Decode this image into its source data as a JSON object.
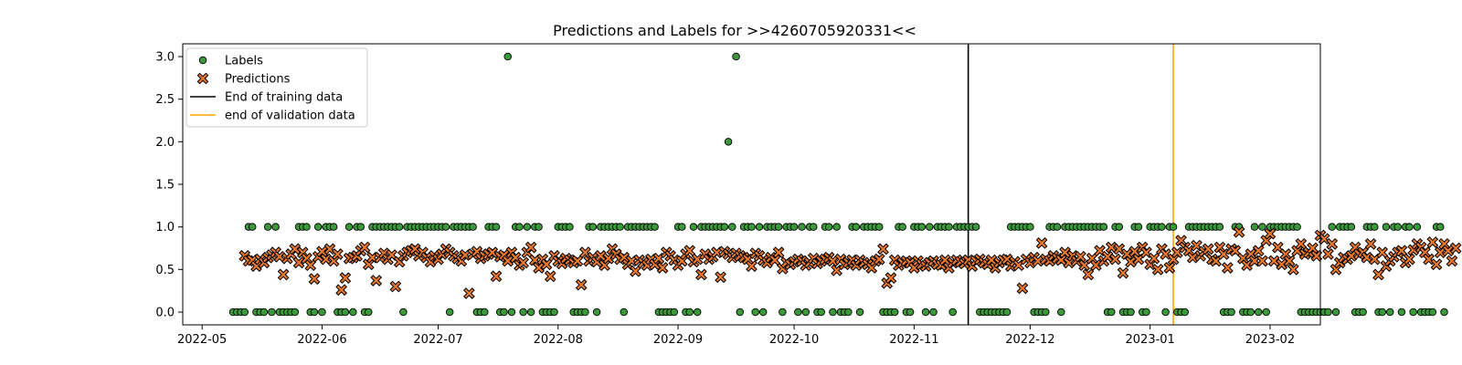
{
  "chart_data": {
    "type": "scatter",
    "title": "Predictions and Labels for >>4260705920331<<",
    "xlabel": "",
    "ylabel": "",
    "xlim": [
      "2022-04-26",
      "2023-02-14"
    ],
    "ylim": [
      -0.15,
      3.15
    ],
    "x_ticks": [
      "2022-05",
      "2022-06",
      "2022-07",
      "2022-08",
      "2022-09",
      "2022-10",
      "2022-11",
      "2022-12",
      "2023-01",
      "2023-02"
    ],
    "y_ticks": [
      "0.0",
      "0.5",
      "1.0",
      "1.5",
      "2.0",
      "2.5",
      "3.0"
    ],
    "grid": false,
    "legend_position": "top-left",
    "colors": {
      "labels": "#3a9a3a",
      "predictions": "#e8782d",
      "training_line": "#000000",
      "validation_line": "#ffa500"
    },
    "legend": [
      {
        "label": "Labels",
        "marker": "circle"
      },
      {
        "label": "Predictions",
        "marker": "x"
      },
      {
        "label": "End of training data",
        "marker": "line-black"
      },
      {
        "label": "end of validation data",
        "marker": "line-orange"
      }
    ],
    "vlines": [
      {
        "name": "End of training data",
        "x": "2022-11-15"
      },
      {
        "name": "end of validation data",
        "x": "2023-01-07"
      }
    ],
    "series": [
      {
        "name": "Labels",
        "start": "2022-05-09",
        "values": [
          0,
          0,
          0,
          0,
          1,
          1,
          0,
          0,
          0,
          1,
          0,
          1,
          0,
          0,
          0,
          0,
          0,
          1,
          1,
          1,
          0,
          0,
          1,
          0,
          1,
          1,
          1,
          0,
          0,
          0,
          1,
          0,
          1,
          1,
          0,
          0,
          1,
          1,
          1,
          1,
          1,
          1,
          1,
          1,
          0,
          1,
          1,
          1,
          1,
          1,
          1,
          1,
          1,
          1,
          1,
          1,
          0,
          1,
          1,
          1,
          1,
          1,
          1,
          0,
          0,
          0,
          1,
          1,
          1,
          0,
          0,
          3,
          0,
          1,
          1,
          0,
          1,
          0,
          1,
          1,
          0,
          0,
          0,
          0,
          1,
          1,
          1,
          1,
          0,
          0,
          0,
          0,
          1,
          1,
          0,
          1,
          1,
          1,
          1,
          1,
          1,
          0,
          1,
          1,
          1,
          1,
          1,
          1,
          1,
          1,
          0,
          0,
          0,
          0,
          0,
          1,
          1,
          0,
          0,
          1,
          0,
          1,
          1,
          1,
          1,
          1,
          1,
          1,
          2,
          1,
          3,
          0,
          1,
          1,
          1,
          0,
          1,
          0,
          1,
          1,
          1,
          1,
          0,
          1,
          1,
          1,
          0,
          1,
          0,
          1,
          1,
          0,
          0,
          1,
          1,
          0,
          1,
          0,
          0,
          0,
          1,
          1,
          0,
          1,
          1,
          1,
          1,
          1,
          0,
          0,
          0,
          0,
          1,
          1,
          0,
          0,
          1,
          1,
          1,
          0,
          1,
          0,
          1,
          1,
          1,
          1,
          0,
          1,
          1,
          1,
          1,
          1,
          1,
          0,
          0,
          0,
          0,
          0,
          0,
          0,
          0,
          1,
          1,
          1,
          1,
          1,
          1,
          0,
          0,
          0,
          0,
          1,
          1,
          1,
          0,
          1,
          1,
          1,
          1,
          1,
          1,
          1,
          1,
          1,
          1,
          1,
          0,
          0,
          1,
          1,
          0,
          0,
          0,
          1,
          1,
          0,
          0,
          1,
          1,
          1,
          1,
          0,
          1,
          1,
          0,
          0,
          0,
          1,
          1,
          1,
          1,
          1,
          1,
          1,
          1,
          1,
          0,
          0,
          0,
          1,
          1,
          0,
          0,
          0,
          1,
          0,
          1,
          0,
          1,
          1,
          1,
          1,
          1,
          1,
          1,
          1,
          0,
          0,
          0,
          0,
          0,
          0,
          0,
          0,
          1,
          0,
          1,
          1,
          1,
          1,
          0,
          0,
          0,
          1,
          1,
          1,
          0,
          0,
          1,
          0,
          1,
          1,
          0,
          1,
          1,
          0,
          1,
          0,
          0,
          0,
          0,
          1,
          1,
          0
        ]
      },
      {
        "name": "Predictions",
        "start": "2022-05-12",
        "values": [
          0.66,
          0.6,
          0.61,
          0.54,
          0.62,
          0.58,
          0.64,
          0.67,
          0.7,
          0.65,
          0.44,
          0.63,
          0.68,
          0.74,
          0.58,
          0.7,
          0.63,
          0.55,
          0.39,
          0.65,
          0.71,
          0.62,
          0.74,
          0.6,
          0.68,
          0.26,
          0.4,
          0.63,
          0.64,
          0.66,
          0.72,
          0.76,
          0.56,
          0.64,
          0.37,
          0.64,
          0.69,
          0.62,
          0.67,
          0.3,
          0.59,
          0.66,
          0.7,
          0.72,
          0.74,
          0.66,
          0.7,
          0.64,
          0.59,
          0.66,
          0.62,
          0.68,
          0.74,
          0.7,
          0.66,
          0.63,
          0.6,
          0.67,
          0.22,
          0.68,
          0.71,
          0.63,
          0.66,
          0.68,
          0.7,
          0.42,
          0.65,
          0.67,
          0.6,
          0.7,
          0.64,
          0.55,
          0.58,
          0.7,
          0.76,
          0.61,
          0.52,
          0.62,
          0.56,
          0.42,
          0.66,
          0.6,
          0.57,
          0.63,
          0.61,
          0.58,
          0.6,
          0.32,
          0.7,
          0.6,
          0.64,
          0.59,
          0.66,
          0.55,
          0.63,
          0.74,
          0.68,
          0.62,
          0.64,
          0.56,
          0.6,
          0.48,
          0.61,
          0.58,
          0.55,
          0.62,
          0.56,
          0.63,
          0.52,
          0.7,
          0.66,
          0.61,
          0.55,
          0.6,
          0.68,
          0.72,
          0.59,
          0.62,
          0.44,
          0.68,
          0.62,
          0.65,
          0.7,
          0.41,
          0.71,
          0.68,
          0.64,
          0.69,
          0.66,
          0.64,
          0.62,
          0.54,
          0.69,
          0.66,
          0.61,
          0.58,
          0.64,
          0.61,
          0.7,
          0.51,
          0.58,
          0.56,
          0.59,
          0.62,
          0.6,
          0.55,
          0.58,
          0.63,
          0.57,
          0.6,
          0.62,
          0.64,
          0.6,
          0.49,
          0.62,
          0.56,
          0.58,
          0.61,
          0.55,
          0.61,
          0.58,
          0.56,
          0.52,
          0.6,
          0.62,
          0.74,
          0.34,
          0.4,
          0.61,
          0.55,
          0.58,
          0.6,
          0.58,
          0.52,
          0.6,
          0.56,
          0.54,
          0.58,
          0.6,
          0.56,
          0.55,
          0.61,
          0.52,
          0.58,
          0.61,
          0.59,
          0.57,
          0.61,
          0.54,
          0.6,
          0.62,
          0.58,
          0.56,
          0.61,
          0.52,
          0.58,
          0.61,
          0.62,
          0.54,
          0.59,
          0.55,
          0.28,
          0.62,
          0.58,
          0.64,
          0.6,
          0.81,
          0.62,
          0.6,
          0.66,
          0.63,
          0.61,
          0.7,
          0.58,
          0.66,
          0.6,
          0.65,
          0.55,
          0.44,
          0.63,
          0.55,
          0.72,
          0.6,
          0.65,
          0.76,
          0.62,
          0.74,
          0.46,
          0.68,
          0.59,
          0.71,
          0.62,
          0.76,
          0.7,
          0.56,
          0.63,
          0.5,
          0.74,
          0.68,
          0.52,
          0.62,
          0.7,
          0.84,
          0.76,
          0.72,
          0.64,
          0.78,
          0.66,
          0.71,
          0.74,
          0.62,
          0.6,
          0.76,
          0.68,
          0.52,
          0.74,
          0.72,
          0.94,
          0.63,
          0.55,
          0.68,
          0.6,
          0.72,
          0.6,
          0.84,
          0.92,
          0.6,
          0.76,
          0.56,
          0.68,
          0.6,
          0.5,
          0.72,
          0.8,
          0.68,
          0.7,
          0.75,
          0.66,
          0.9,
          0.86,
          0.68,
          0.8,
          0.5,
          0.58,
          0.64,
          0.62,
          0.66,
          0.76,
          0.68,
          0.7,
          0.64,
          0.8,
          0.62,
          0.44,
          0.7,
          0.54,
          0.6,
          0.65,
          0.7,
          0.72,
          0.58,
          0.62,
          0.73,
          0.8,
          0.76,
          0.7,
          0.62,
          0.82,
          0.56,
          0.7,
          0.8,
          0.72,
          0.6,
          0.75
        ]
      }
    ]
  }
}
